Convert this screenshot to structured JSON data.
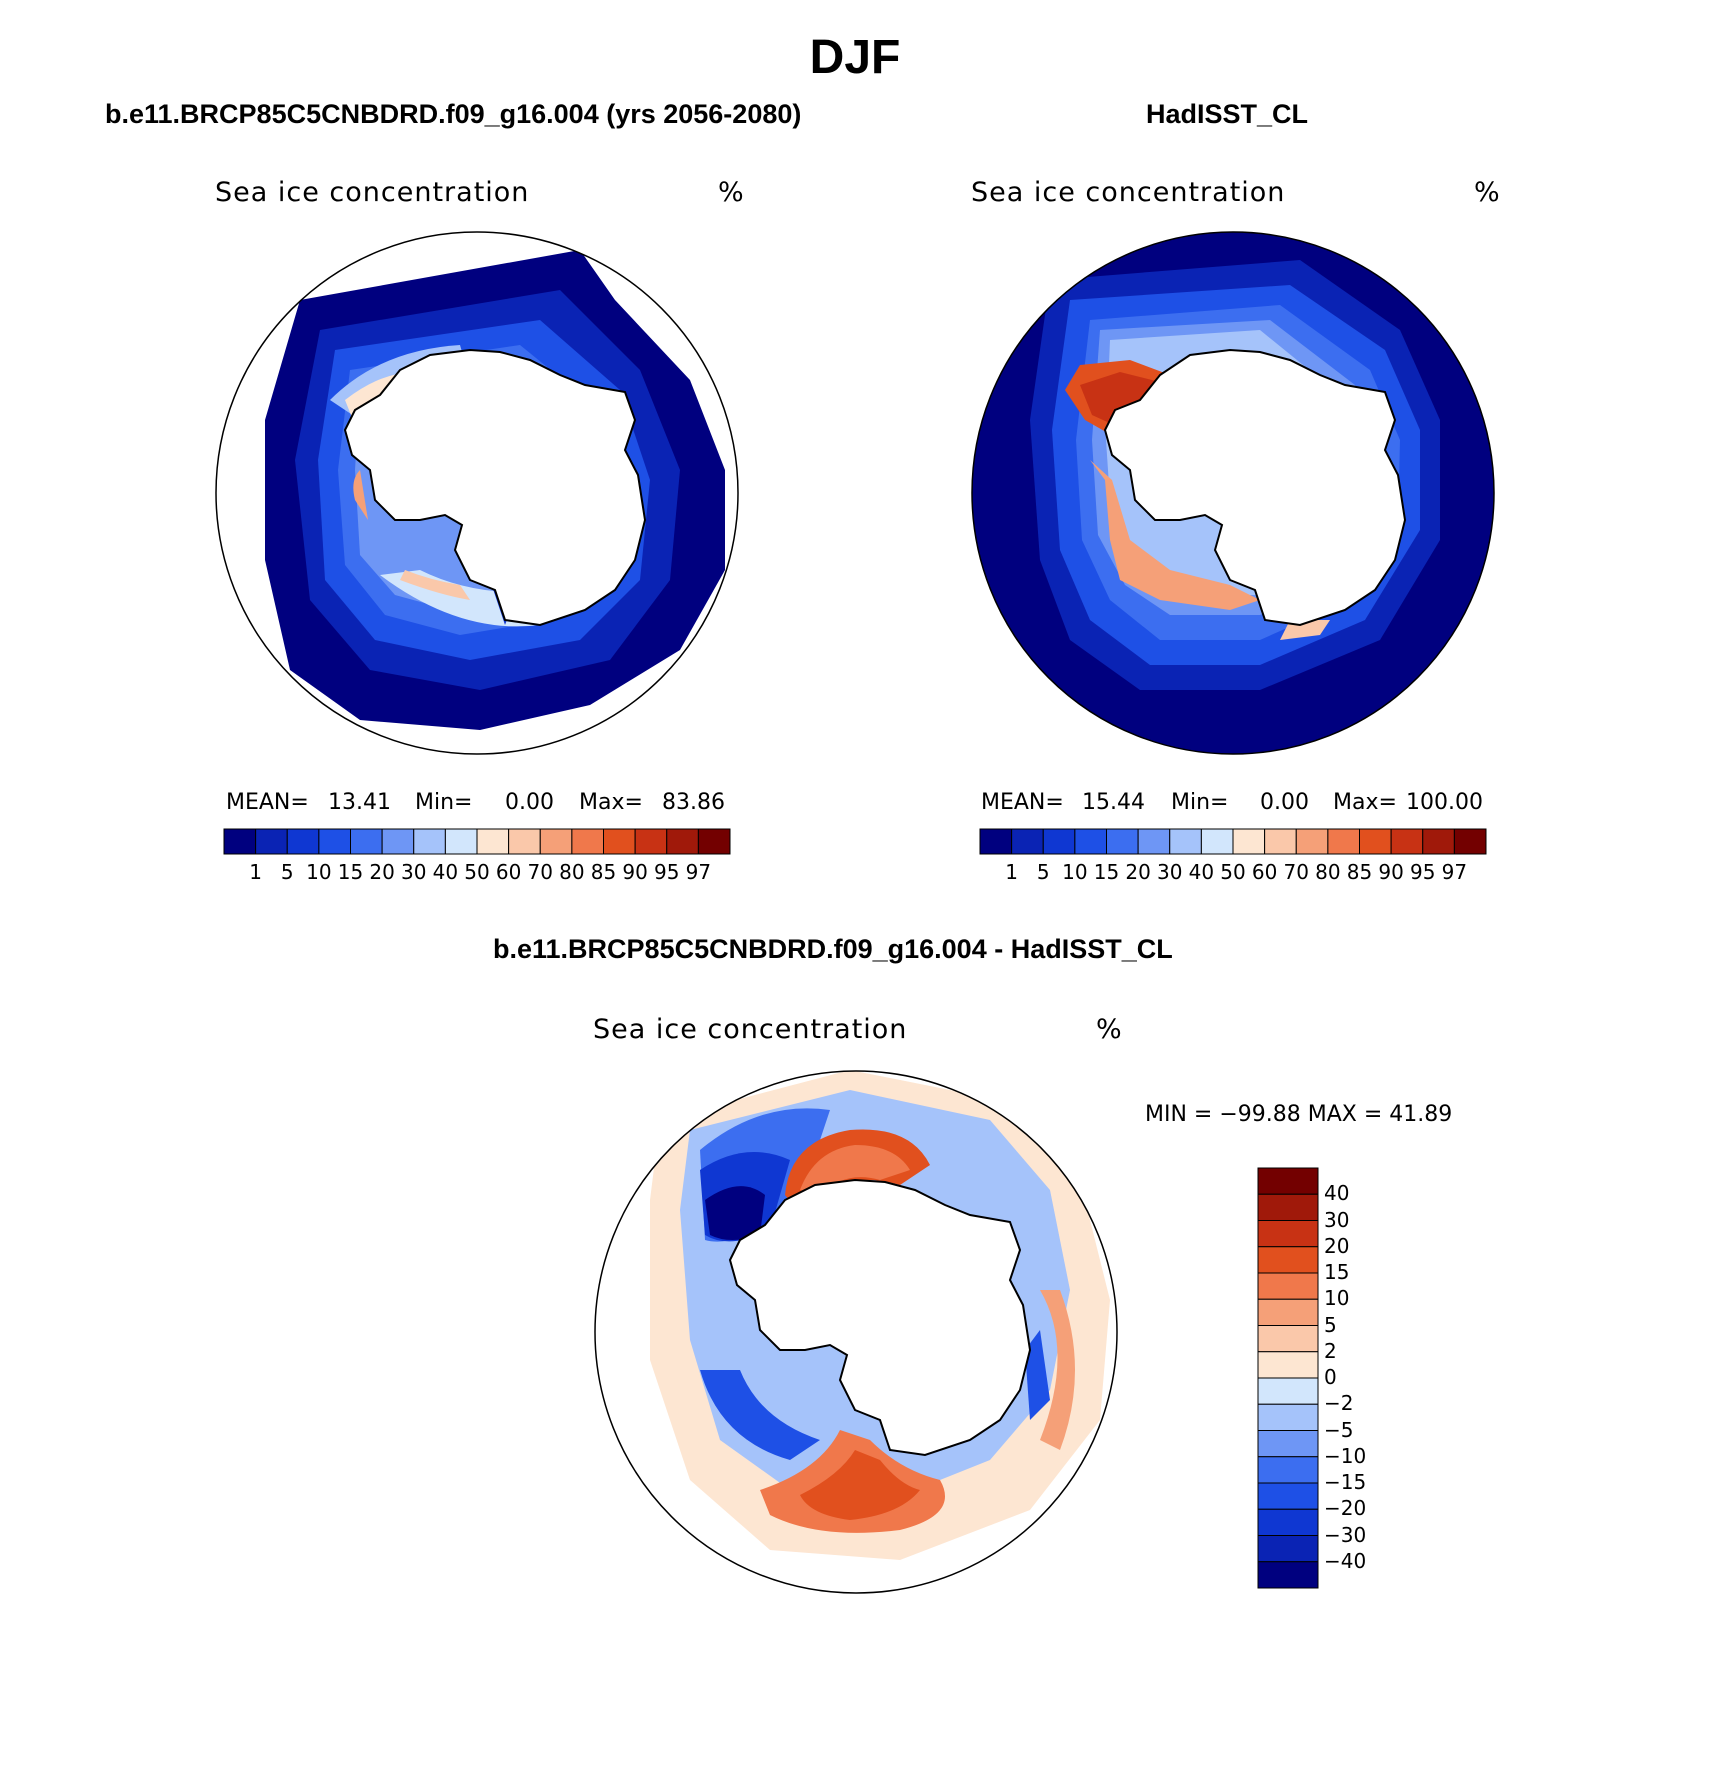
{
  "title": "DJF",
  "panels": {
    "model": {
      "title": "b.e11.BRCP85C5CNBDRD.f09_g16.004 (yrs 2056-2080)",
      "variable": "Sea ice concentration",
      "units": "%",
      "stats": {
        "mean_label": "MEAN=",
        "mean": "13.41",
        "min_label": "Min=",
        "min": "0.00",
        "max_label": "Max=",
        "max": "83.86"
      }
    },
    "obs": {
      "title": "HadISST_CL",
      "variable": "Sea ice concentration",
      "units": "%",
      "stats": {
        "mean_label": "MEAN=",
        "mean": "15.44",
        "min_label": "Min=",
        "min": "0.00",
        "max_label": "Max=",
        "max": "100.00"
      }
    },
    "diff": {
      "title": "b.e11.BRCP85C5CNBDRD.f09_g16.004 - HadISST_CL",
      "variable": "Sea ice concentration",
      "units": "%",
      "stats": {
        "text": "MIN = −99.88 MAX =   41.89"
      }
    }
  },
  "colorbars": {
    "conc": {
      "labels": [
        "1",
        "5",
        "10",
        "15",
        "20",
        "30",
        "40",
        "50",
        "60",
        "70",
        "80",
        "85",
        "90",
        "95",
        "97"
      ],
      "colors": [
        "#00007f",
        "#0a23b4",
        "#0f37d2",
        "#1e50e6",
        "#3c6ef0",
        "#6e96f5",
        "#a5c3fa",
        "#d2e6fc",
        "#fde6d2",
        "#fac8aa",
        "#f5a078",
        "#f0784b",
        "#e1501e",
        "#c83214",
        "#a0190a",
        "#730000"
      ]
    },
    "diff": {
      "labels": [
        "40",
        "30",
        "20",
        "15",
        "10",
        "5",
        "2",
        "0",
        "−2",
        "−5",
        "−10",
        "−15",
        "−20",
        "−30",
        "−40"
      ],
      "colors": [
        "#730000",
        "#a0190a",
        "#c83214",
        "#e1501e",
        "#f0784b",
        "#f5a078",
        "#fac8aa",
        "#fde6d2",
        "#d2e6fc",
        "#a5c3fa",
        "#6e96f5",
        "#3c6ef0",
        "#1e50e6",
        "#0f37d2",
        "#0a23b4",
        "#00007f"
      ]
    }
  }
}
